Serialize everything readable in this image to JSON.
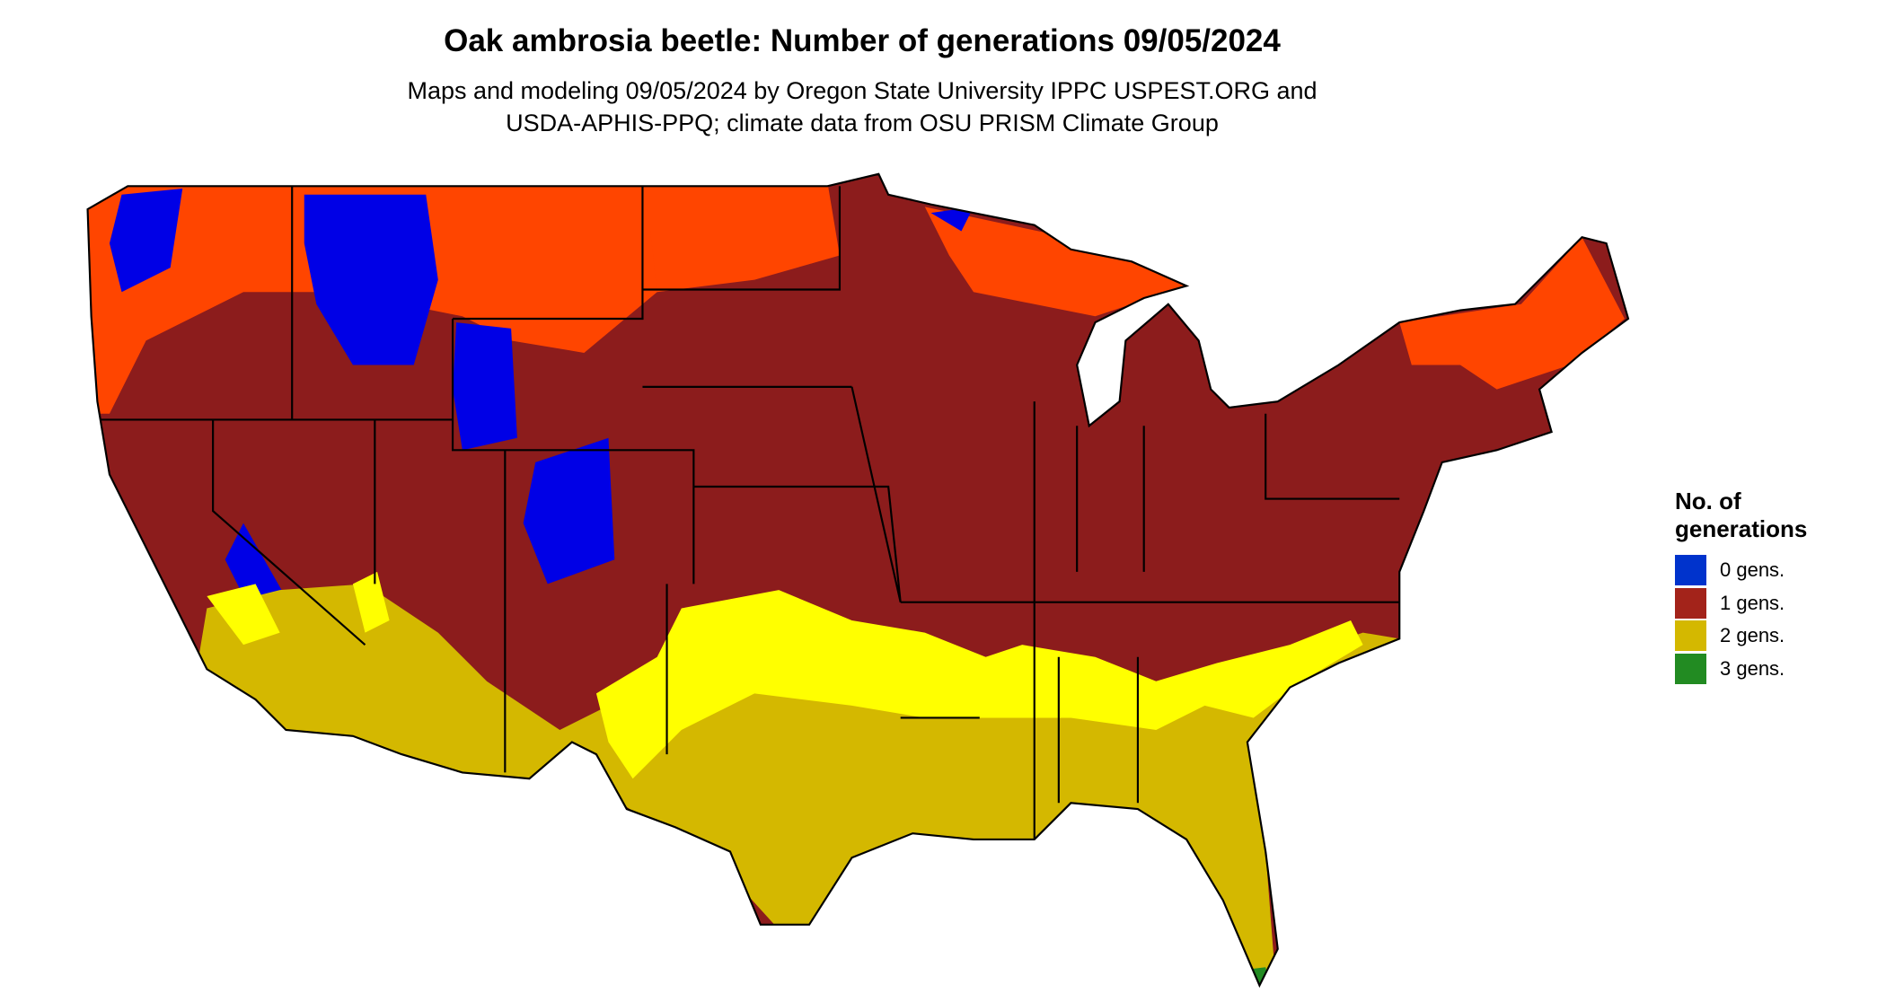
{
  "header": {
    "title": "Oak ambrosia beetle: Number of generations 09/05/2024",
    "subtitle": [
      "Maps and modeling 09/05/2024 by Oregon State University IPPC USPEST.ORG and",
      "USDA-APHIS-PPQ; climate data from OSU PRISM Climate Group"
    ]
  },
  "legend": {
    "title": "No. of generations",
    "items": [
      {
        "label": "0 gens.",
        "color": "#0033cc"
      },
      {
        "label": "1 gens.",
        "color": "#a3231a"
      },
      {
        "label": "2 gens.",
        "color": "#d4b800"
      },
      {
        "label": "3 gens.",
        "color": "#228b22"
      }
    ]
  }
}
